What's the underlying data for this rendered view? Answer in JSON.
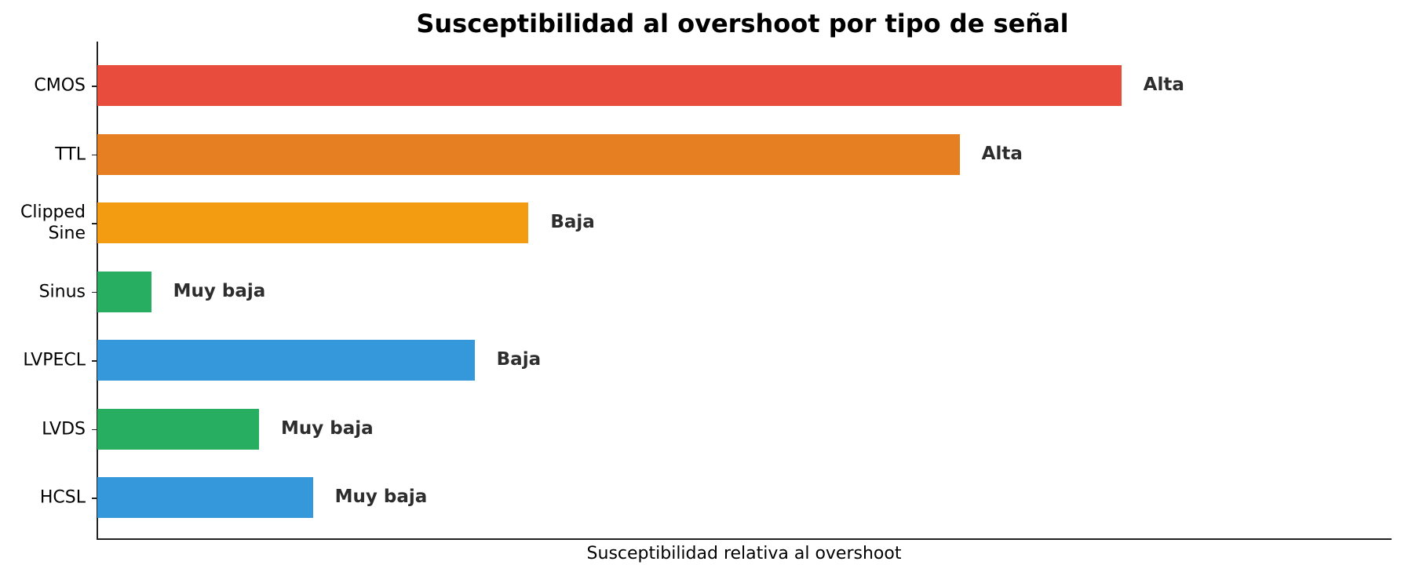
{
  "chart_data": {
    "type": "bar",
    "orientation": "horizontal",
    "title": "Susceptibilidad al overshoot por tipo de señal",
    "xlabel": "Susceptibilidad relativa al overshoot",
    "ylabel": "",
    "xlim": [
      0,
      12
    ],
    "grid": false,
    "legend": null,
    "categories": [
      "CMOS",
      "TTL",
      "Clipped\nSine",
      "Sinus",
      "LVPECL",
      "LVDS",
      "HCSL"
    ],
    "values": [
      9.5,
      8.0,
      4.0,
      0.5,
      3.5,
      1.5,
      2.0
    ],
    "annotations": [
      "Alta",
      "Alta",
      "Baja",
      "Muy baja",
      "Baja",
      "Muy baja",
      "Muy baja"
    ],
    "colors": [
      "#E74C3C",
      "#E67E22",
      "#F39C12",
      "#27AE60",
      "#3498DB",
      "#27AE60",
      "#3498DB"
    ]
  },
  "title": "Susceptibilidad al overshoot por tipo de señal",
  "xlabel": "Susceptibilidad relativa al overshoot",
  "bars": [
    {
      "label": "CMOS",
      "value": 9.5,
      "annotation": "Alta",
      "color": "#E74C3C"
    },
    {
      "label": "TTL",
      "value": 8.0,
      "annotation": "Alta",
      "color": "#E67E22"
    },
    {
      "label": "Clipped\nSine",
      "value": 4.0,
      "annotation": "Baja",
      "color": "#F39C12"
    },
    {
      "label": "Sinus",
      "value": 0.5,
      "annotation": "Muy baja",
      "color": "#27AE60"
    },
    {
      "label": "LVPECL",
      "value": 3.5,
      "annotation": "Baja",
      "color": "#3498DB"
    },
    {
      "label": "LVDS",
      "value": 1.5,
      "annotation": "Muy baja",
      "color": "#27AE60"
    },
    {
      "label": "HCSL",
      "value": 2.0,
      "annotation": "Muy baja",
      "color": "#3498DB"
    }
  ]
}
